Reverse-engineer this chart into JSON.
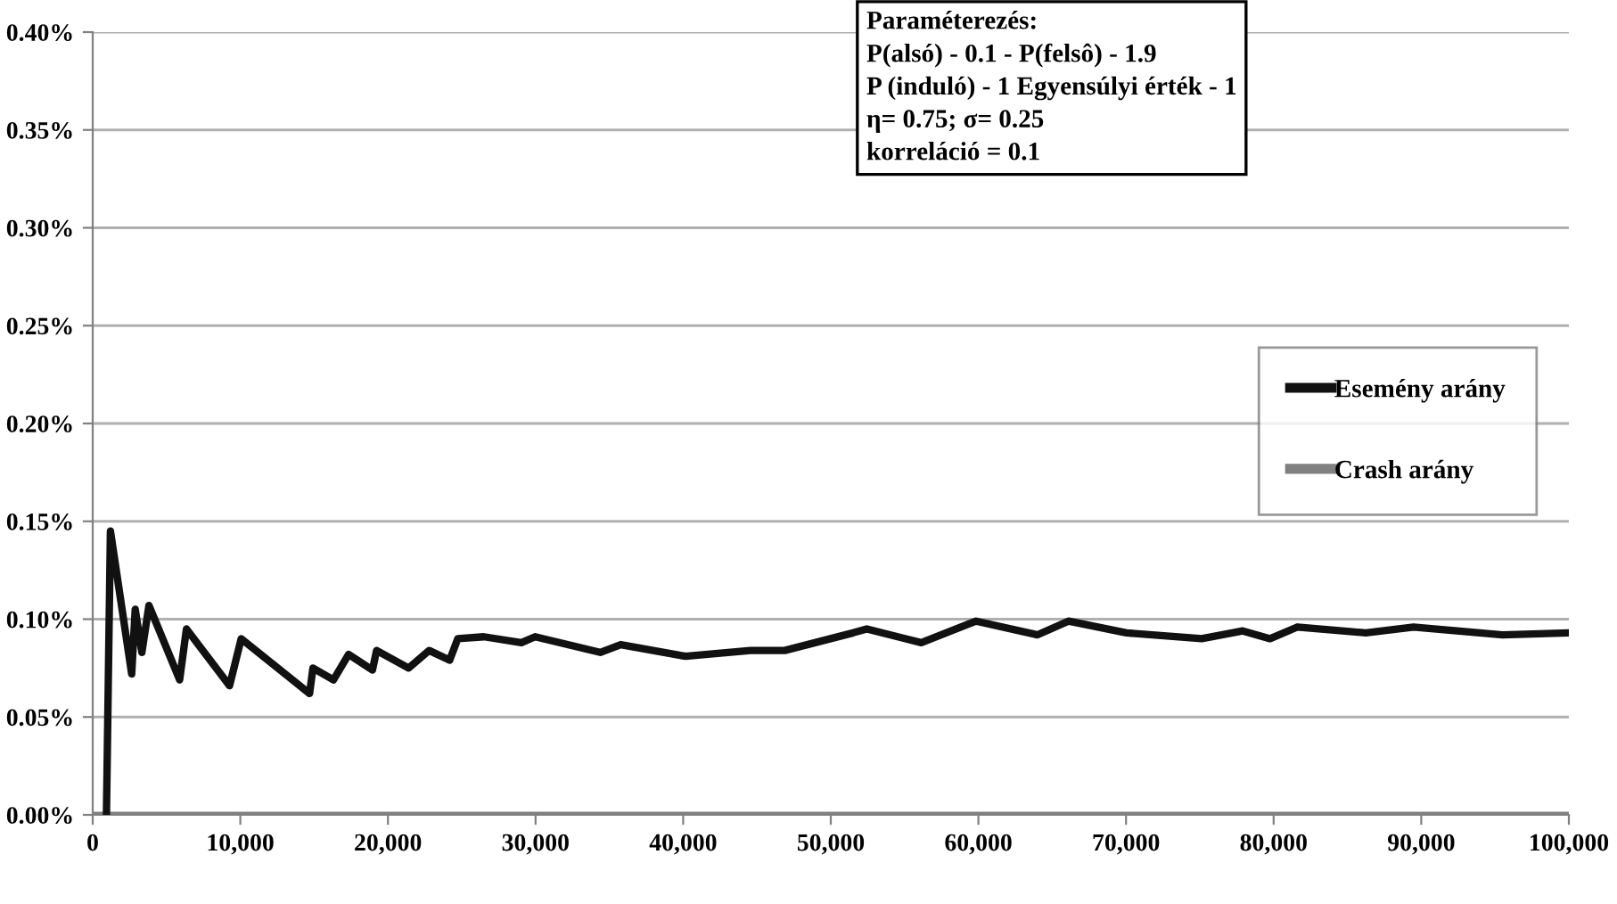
{
  "chart_data": {
    "type": "line",
    "annotations": [
      "Paraméterezés:",
      "P(alsó) - 0.1 - P(felsô) - 1.9",
      "P (induló) - 1 Egyensúlyi érték - 1",
      "η= 0.75; σ= 0.25",
      "korreláció = 0.1"
    ],
    "series": [
      {
        "name": "Esemény arány",
        "color": "#111111",
        "x": [
          930,
          1200,
          2640,
          2880,
          3330,
          3810,
          5890,
          6350,
          9270,
          10060,
          14690,
          14920,
          16310,
          17330,
          18950,
          19230,
          21400,
          22790,
          24180,
          24730,
          26500,
          29040,
          29970,
          34380,
          35770,
          40160,
          44560,
          46880,
          51510,
          52440,
          56130,
          59840,
          64010,
          66100,
          70030,
          75130,
          77910,
          79760,
          81620,
          86240,
          89480,
          95510,
          100000
        ],
        "values": [
          0,
          0.145,
          0.072,
          0.105,
          0.083,
          0.107,
          0.069,
          0.095,
          0.066,
          0.09,
          0.062,
          0.075,
          0.069,
          0.082,
          0.074,
          0.084,
          0.075,
          0.084,
          0.079,
          0.09,
          0.091,
          0.088,
          0.091,
          0.083,
          0.087,
          0.081,
          0.084,
          0.084,
          0.093,
          0.095,
          0.088,
          0.099,
          0.092,
          0.099,
          0.093,
          0.09,
          0.094,
          0.09,
          0.096,
          0.093,
          0.096,
          0.092,
          0.093
        ]
      },
      {
        "name": "Crash arány",
        "color": "#808080",
        "x": [
          0,
          100000
        ],
        "values": [
          0,
          0
        ]
      }
    ],
    "xlim": [
      0,
      100000
    ],
    "xticks": [
      0,
      {
        "value": 10000,
        "label": "10,000"
      },
      {
        "value": 20000,
        "label": "20,000"
      },
      {
        "value": 30000,
        "label": "30,000"
      },
      {
        "value": 40000,
        "label": "40,000"
      },
      {
        "value": 50000,
        "label": "50,000"
      },
      {
        "value": 60000,
        "label": "60,000"
      },
      {
        "value": 70000,
        "label": "70,000"
      },
      {
        "value": 80000,
        "label": "80,000"
      },
      {
        "value": 90000,
        "label": "90,000"
      },
      {
        "value": 100000,
        "label": "100,000"
      }
    ],
    "ylim": [
      0,
      0.4
    ],
    "yticks": [
      {
        "value": 0,
        "label": "0.00%"
      },
      {
        "value": 0.05,
        "label": "0.05%"
      },
      {
        "value": 0.1,
        "label": "0.10%"
      },
      {
        "value": 0.15,
        "label": "0.15%"
      },
      {
        "value": 0.2,
        "label": "0.20%"
      },
      {
        "value": 0.25,
        "label": "0.25%"
      },
      {
        "value": 0.3,
        "label": "0.30%"
      },
      {
        "value": 0.35,
        "label": "0.35%"
      },
      {
        "value": 0.4,
        "label": "0.40%"
      }
    ],
    "grid": "y",
    "legend": "right",
    "marker": "none",
    "line_style": "solid"
  }
}
